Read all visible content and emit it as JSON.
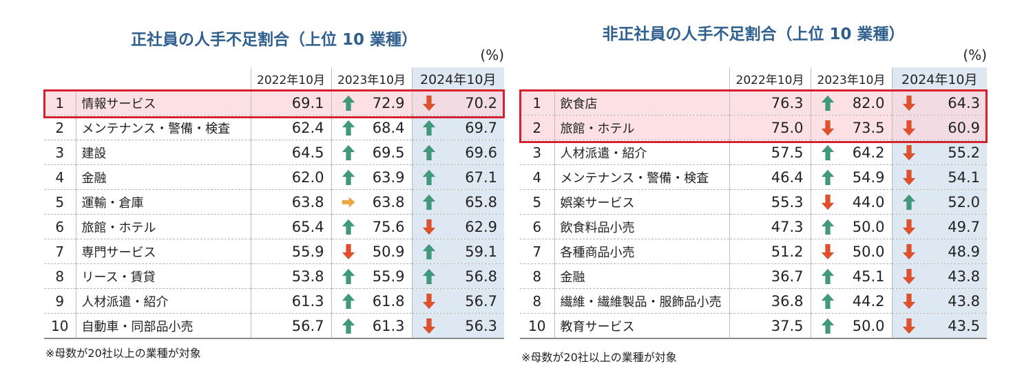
{
  "chart_data": [
    {
      "type": "table",
      "title": "正社員の人手不足割合（上位 10 業種）",
      "unit": "(%)",
      "columns": [
        "2022年10月",
        "2023年10月",
        "2024年10月"
      ],
      "note": "※母数が20社以上の業種が対象",
      "rows": [
        {
          "rank": "1",
          "industry": "情報サービス",
          "v2022": "69.1",
          "v2023": "72.9",
          "t2023": "up",
          "v2024": "70.2",
          "t2024": "down",
          "highlight": true
        },
        {
          "rank": "2",
          "industry": "メンテナンス・警備・検査",
          "v2022": "62.4",
          "v2023": "68.4",
          "t2023": "up",
          "v2024": "69.7",
          "t2024": "up",
          "highlight": false
        },
        {
          "rank": "3",
          "industry": "建設",
          "v2022": "64.5",
          "v2023": "69.5",
          "t2023": "up",
          "v2024": "69.6",
          "t2024": "up",
          "highlight": false
        },
        {
          "rank": "4",
          "industry": "金融",
          "v2022": "62.0",
          "v2023": "63.9",
          "t2023": "up",
          "v2024": "67.1",
          "t2024": "up",
          "highlight": false
        },
        {
          "rank": "5",
          "industry": "運輸・倉庫",
          "v2022": "63.8",
          "v2023": "63.8",
          "t2023": "flat",
          "v2024": "65.8",
          "t2024": "up",
          "highlight": false
        },
        {
          "rank": "6",
          "industry": "旅館・ホテル",
          "v2022": "65.4",
          "v2023": "75.6",
          "t2023": "up",
          "v2024": "62.9",
          "t2024": "down",
          "highlight": false
        },
        {
          "rank": "7",
          "industry": "専門サービス",
          "v2022": "55.9",
          "v2023": "50.9",
          "t2023": "down",
          "v2024": "59.1",
          "t2024": "up",
          "highlight": false
        },
        {
          "rank": "8",
          "industry": "リース・賃貸",
          "v2022": "53.8",
          "v2023": "55.9",
          "t2023": "up",
          "v2024": "56.8",
          "t2024": "up",
          "highlight": false
        },
        {
          "rank": "9",
          "industry": "人材派遣・紹介",
          "v2022": "61.3",
          "v2023": "61.8",
          "t2023": "up",
          "v2024": "56.7",
          "t2024": "down",
          "highlight": false
        },
        {
          "rank": "10",
          "industry": "自動車・同部品小売",
          "v2022": "56.7",
          "v2023": "61.3",
          "t2023": "up",
          "v2024": "56.3",
          "t2024": "down",
          "highlight": false
        }
      ]
    },
    {
      "type": "table",
      "title": "非正社員の人手不足割合（上位 10 業種）",
      "unit": "(%)",
      "columns": [
        "2022年10月",
        "2023年10月",
        "2024年10月"
      ],
      "note": "※母数が20社以上の業種が対象",
      "rows": [
        {
          "rank": "1",
          "industry": "飲食店",
          "v2022": "76.3",
          "v2023": "82.0",
          "t2023": "up",
          "v2024": "64.3",
          "t2024": "down",
          "highlight": true
        },
        {
          "rank": "2",
          "industry": "旅館・ホテル",
          "v2022": "75.0",
          "v2023": "73.5",
          "t2023": "down",
          "v2024": "60.9",
          "t2024": "down",
          "highlight": true
        },
        {
          "rank": "3",
          "industry": "人材派遣・紹介",
          "v2022": "57.5",
          "v2023": "64.2",
          "t2023": "up",
          "v2024": "55.2",
          "t2024": "down",
          "highlight": false
        },
        {
          "rank": "4",
          "industry": "メンテナンス・警備・検査",
          "v2022": "46.4",
          "v2023": "54.9",
          "t2023": "up",
          "v2024": "54.1",
          "t2024": "down",
          "highlight": false
        },
        {
          "rank": "5",
          "industry": "娯楽サービス",
          "v2022": "55.3",
          "v2023": "44.0",
          "t2023": "down",
          "v2024": "52.0",
          "t2024": "up",
          "highlight": false
        },
        {
          "rank": "6",
          "industry": "飲食料品小売",
          "v2022": "47.3",
          "v2023": "50.0",
          "t2023": "up",
          "v2024": "49.7",
          "t2024": "down",
          "highlight": false
        },
        {
          "rank": "7",
          "industry": "各種商品小売",
          "v2022": "51.2",
          "v2023": "50.0",
          "t2023": "down",
          "v2024": "48.9",
          "t2024": "down",
          "highlight": false
        },
        {
          "rank": "8",
          "industry": "金融",
          "v2022": "36.7",
          "v2023": "45.1",
          "t2023": "up",
          "v2024": "43.8",
          "t2024": "down",
          "highlight": false
        },
        {
          "rank": "8",
          "industry": "繊維・繊維製品・服飾品小売",
          "v2022": "36.8",
          "v2023": "44.2",
          "t2023": "up",
          "v2024": "43.8",
          "t2024": "down",
          "highlight": false
        },
        {
          "rank": "10",
          "industry": "教育サービス",
          "v2022": "37.5",
          "v2023": "50.0",
          "t2023": "up",
          "v2024": "43.5",
          "t2024": "down",
          "highlight": false
        }
      ]
    }
  ],
  "colors": {
    "title": "#2f5f8f",
    "highlight_column": "#dde8f3",
    "highlight_row": "#fbe0e4",
    "highlight_box": "#d8202c",
    "arrow_up": "#3f9a7c",
    "arrow_down": "#e2502a",
    "arrow_flat": "#f0a640"
  },
  "icons": {
    "up": "green-up-arrow-icon",
    "down": "red-down-arrow-icon",
    "flat": "orange-right-arrow-icon"
  }
}
